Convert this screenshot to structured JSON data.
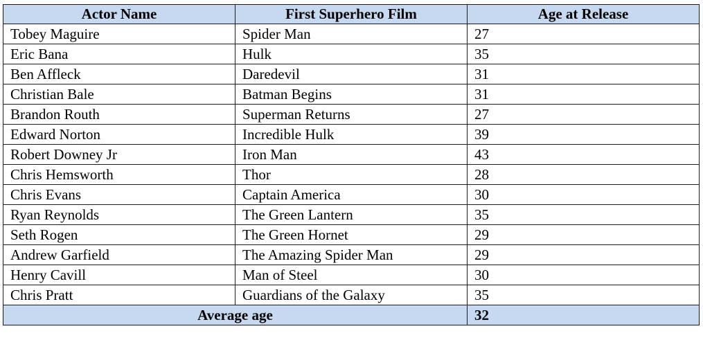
{
  "table": {
    "headers": [
      "Actor Name",
      "First Superhero Film",
      "Age at Release"
    ],
    "rows": [
      [
        "Tobey Maguire",
        "Spider Man",
        "27"
      ],
      [
        "Eric Bana",
        "Hulk",
        "35"
      ],
      [
        "Ben Affleck",
        "Daredevil",
        "31"
      ],
      [
        "Christian Bale",
        "Batman Begins",
        "31"
      ],
      [
        "Brandon Routh",
        "Superman Returns",
        "27"
      ],
      [
        "Edward Norton",
        "Incredible Hulk",
        "39"
      ],
      [
        "Robert Downey Jr",
        "Iron Man",
        "43"
      ],
      [
        "Chris Hemsworth",
        "Thor",
        "28"
      ],
      [
        "Chris Evans",
        "Captain America",
        "30"
      ],
      [
        "Ryan Reynolds",
        "The Green Lantern",
        "35"
      ],
      [
        "Seth Rogen",
        "The Green Hornet",
        "29"
      ],
      [
        "Andrew Garfield",
        "The Amazing Spider Man",
        "29"
      ],
      [
        "Henry Cavill",
        "Man of Steel",
        "30"
      ],
      [
        "Chris Pratt",
        "Guardians of the Galaxy",
        "35"
      ]
    ],
    "footer": {
      "label": "Average age",
      "value": "32"
    }
  },
  "colors": {
    "header_background": "#c6d9f0",
    "border": "#1a1a1a"
  }
}
